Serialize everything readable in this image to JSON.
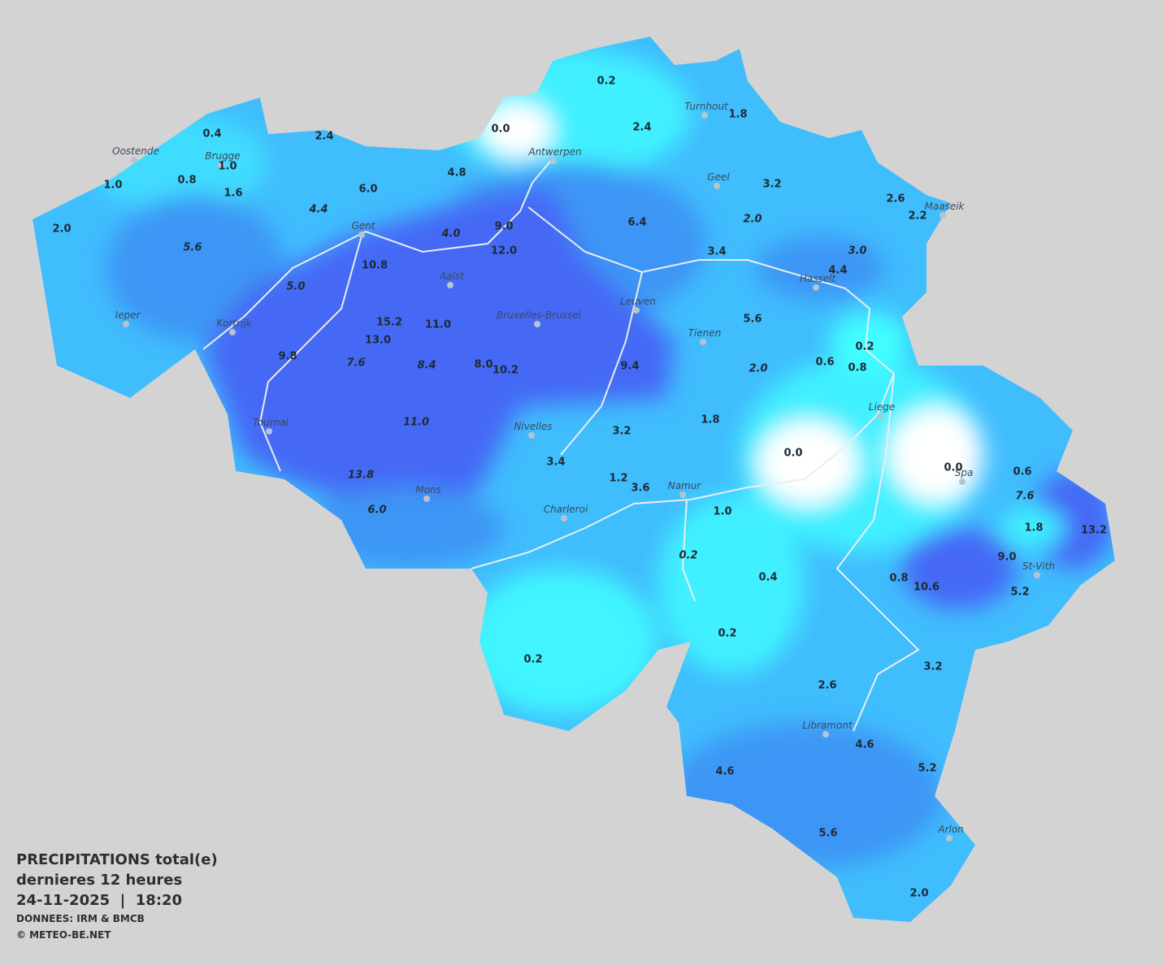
{
  "cities": [
    "Oostende",
    "Brugge",
    "Antwerpen",
    "Turnhout",
    "Geel",
    "Maaseik",
    "Gent",
    "Aalst",
    "Hasselt",
    "Leuven",
    "Ieper",
    "Kortrijk",
    "Bruxelles-Brussel",
    "Tienen",
    "Liege",
    "Tournai",
    "Nivelles",
    "Spa",
    "Namur",
    "Mons",
    "Charleroi",
    "St-Vith",
    "Libramont",
    "Arlon"
  ],
  "values": [
    "0.2",
    "0.0",
    "2.4",
    "1.8",
    "0.4",
    "2.4",
    "1.0",
    "0.8",
    "1.0",
    "1.6",
    "4.8",
    "6.0",
    "3.2",
    "2.6",
    "2.2",
    "4.4",
    "6.4",
    "2.0",
    "2.0",
    "9.0",
    "4.0",
    "5.6",
    "12.0",
    "3.4",
    "3.0",
    "10.8",
    "4.4",
    "5.0",
    "5.6",
    "15.2",
    "11.0",
    "13.0",
    "0.2",
    "9.8",
    "7.6",
    "8.4",
    "8.0",
    "10.2",
    "9.4",
    "0.6",
    "0.8",
    "2.0",
    "1.8",
    "11.0",
    "3.2",
    "0.0",
    "3.4",
    "0.0",
    "0.6",
    "13.8",
    "1.2",
    "3.6",
    "7.6",
    "6.0",
    "1.0",
    "1.8",
    "13.2",
    "0.2",
    "9.0",
    "0.4",
    "0.8",
    "10.6",
    "5.2",
    "0.2",
    "0.2",
    "3.2",
    "2.6",
    "4.6",
    "5.2",
    "4.6",
    "5.6",
    "2.0"
  ],
  "legend": {
    "title": "PRECIPITATIONS total(e)",
    "period": "dernieres 12 heures",
    "datetime": "24-11-2025  |  18:20",
    "source": "DONNEES: IRM & BMCB",
    "credit": "© METEO-BE.NET"
  }
}
